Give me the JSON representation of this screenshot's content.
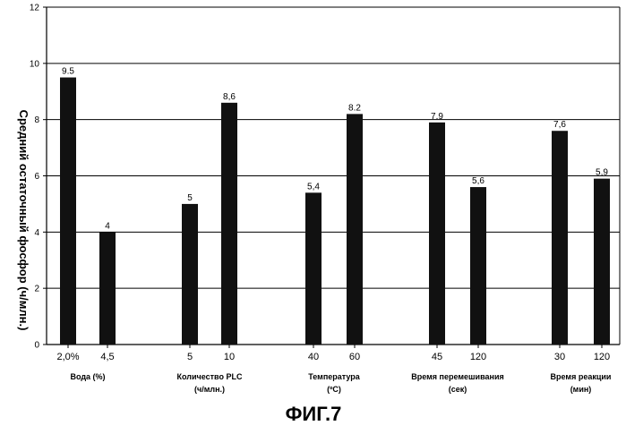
{
  "chart_data": {
    "type": "bar",
    "ylabel": "Средний остаточный фосфор (ч/млн.)",
    "ylim": [
      0,
      12
    ],
    "yticks": [
      0,
      2,
      4,
      6,
      8,
      10,
      12
    ],
    "grid": true,
    "groups": [
      {
        "label_line1": "Вода (%)",
        "label_line2": "",
        "bars": [
          {
            "category": "2,0%",
            "value": 9.5,
            "label": "9.5"
          },
          {
            "category": "4,5",
            "value": 4.0,
            "label": "4"
          }
        ]
      },
      {
        "label_line1": "Количество PLC",
        "label_line2": "(ч/млн.)",
        "bars": [
          {
            "category": "5",
            "value": 5.0,
            "label": "5"
          },
          {
            "category": "10",
            "value": 8.6,
            "label": "8,6"
          }
        ]
      },
      {
        "label_line1": "Температура",
        "label_line2": "(ºС)",
        "bars": [
          {
            "category": "40",
            "value": 5.4,
            "label": "5,4"
          },
          {
            "category": "60",
            "value": 8.2,
            "label": "8.2"
          }
        ]
      },
      {
        "label_line1": "Время перемешивания",
        "label_line2": "(сек)",
        "bars": [
          {
            "category": "45",
            "value": 7.9,
            "label": "7.9"
          },
          {
            "category": "120",
            "value": 5.6,
            "label": "5,6"
          }
        ]
      },
      {
        "label_line1": "Время реакции",
        "label_line2": "(мин)",
        "bars": [
          {
            "category": "30",
            "value": 7.6,
            "label": "7,6"
          },
          {
            "category": "120",
            "value": 5.9,
            "label": "5,9"
          }
        ]
      }
    ]
  },
  "figure_caption": "ФИГ.7",
  "colors": {
    "bar": "#111111",
    "grid": "#000000",
    "background": "#ffffff"
  }
}
